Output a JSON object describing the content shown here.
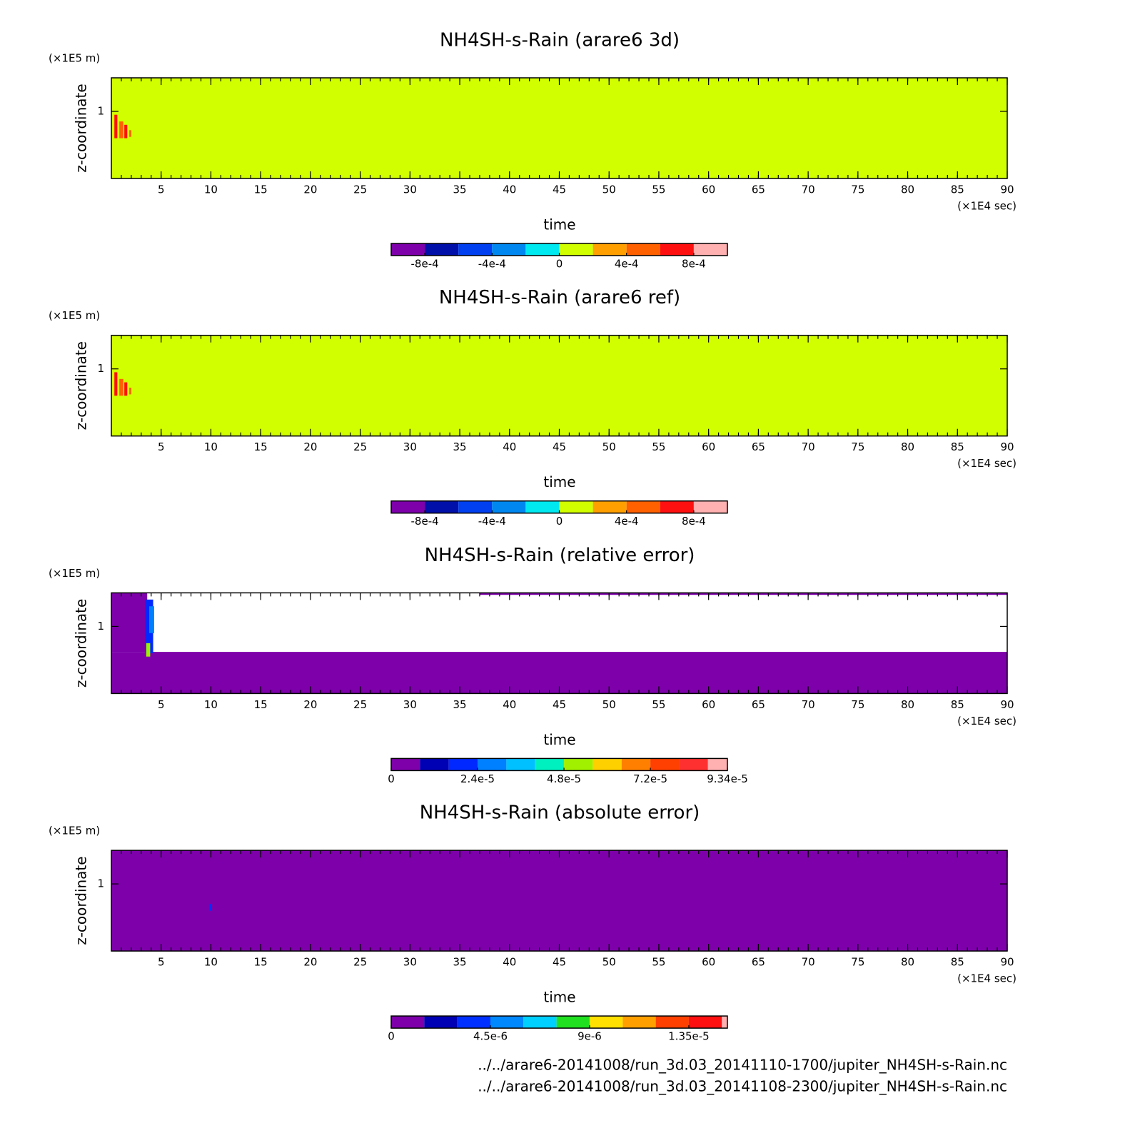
{
  "chart_data": [
    {
      "type": "heatmap",
      "title": "NH4SH-s-Rain (arare6 3d)",
      "x_label": "time",
      "x_unit": "(×1E4 sec)",
      "y_label": "z-coordinate",
      "y_unit": "(×1E5 m)",
      "xlim": [
        0,
        90
      ],
      "xticks": [
        5,
        10,
        15,
        20,
        25,
        30,
        35,
        40,
        45,
        50,
        55,
        60,
        65,
        70,
        75,
        80,
        85,
        90
      ],
      "ylim": [
        0,
        1.5
      ],
      "yticks": [
        1
      ],
      "regions": [
        {
          "x": [
            0,
            90
          ],
          "y": [
            0,
            1.5
          ],
          "value": 0
        },
        {
          "x": [
            0.3,
            0.6
          ],
          "y": [
            0.6,
            0.95
          ],
          "value": 0.0007
        },
        {
          "x": [
            0.8,
            1.2
          ],
          "y": [
            0.6,
            0.85
          ],
          "value": 0.0005
        },
        {
          "x": [
            1.3,
            1.6
          ],
          "y": [
            0.6,
            0.8
          ],
          "value": 0.0007
        },
        {
          "x": [
            1.8,
            2.0
          ],
          "y": [
            0.62,
            0.72
          ],
          "value": 0.0005
        }
      ],
      "colorbar": {
        "bounds": [
          -0.001,
          -0.0008,
          -0.0006,
          -0.0004,
          -0.0002,
          0,
          0.0002,
          0.0004,
          0.0006,
          0.0008,
          0.001
        ],
        "colors": [
          "#7d00aa",
          "#0010a8",
          "#0040f0",
          "#0088f0",
          "#00e8f0",
          "#d2ff00",
          "#ffa000",
          "#ff6000",
          "#ff1010",
          "#ffb0b0"
        ],
        "ticks": [
          {
            "value": -0.0008,
            "label": "-8e-4"
          },
          {
            "value": -0.0004,
            "label": "-4e-4"
          },
          0,
          {
            "value": 0.0004,
            "label": "4e-4"
          },
          {
            "value": 0.0008,
            "label": "8e-4"
          }
        ]
      }
    },
    {
      "type": "heatmap",
      "title": "NH4SH-s-Rain (arare6 ref)",
      "x_label": "time",
      "x_unit": "(×1E4 sec)",
      "y_label": "z-coordinate",
      "y_unit": "(×1E5 m)",
      "xlim": [
        0,
        90
      ],
      "xticks": [
        5,
        10,
        15,
        20,
        25,
        30,
        35,
        40,
        45,
        50,
        55,
        60,
        65,
        70,
        75,
        80,
        85,
        90
      ],
      "ylim": [
        0,
        1.5
      ],
      "yticks": [
        1
      ],
      "regions": [
        {
          "x": [
            0,
            90
          ],
          "y": [
            0,
            1.5
          ],
          "value": 0
        },
        {
          "x": [
            0.3,
            0.6
          ],
          "y": [
            0.6,
            0.95
          ],
          "value": 0.0007
        },
        {
          "x": [
            0.8,
            1.2
          ],
          "y": [
            0.6,
            0.85
          ],
          "value": 0.0005
        },
        {
          "x": [
            1.3,
            1.6
          ],
          "y": [
            0.6,
            0.8
          ],
          "value": 0.0007
        },
        {
          "x": [
            1.8,
            2.0
          ],
          "y": [
            0.62,
            0.72
          ],
          "value": 0.0005
        }
      ],
      "colorbar": {
        "bounds": [
          -0.001,
          -0.0008,
          -0.0006,
          -0.0004,
          -0.0002,
          0,
          0.0002,
          0.0004,
          0.0006,
          0.0008,
          0.001
        ],
        "colors": [
          "#7d00aa",
          "#0010a8",
          "#0040f0",
          "#0088f0",
          "#00e8f0",
          "#d2ff00",
          "#ffa000",
          "#ff6000",
          "#ff1010",
          "#ffb0b0"
        ],
        "ticks": [
          {
            "value": -0.0008,
            "label": "-8e-4"
          },
          {
            "value": -0.0004,
            "label": "-4e-4"
          },
          0,
          {
            "value": 0.0004,
            "label": "4e-4"
          },
          {
            "value": 0.0008,
            "label": "8e-4"
          }
        ]
      }
    },
    {
      "type": "heatmap",
      "title": "NH4SH-s-Rain (relative error)",
      "x_label": "time",
      "x_unit": "(×1E4 sec)",
      "y_label": "z-coordinate",
      "y_unit": "(×1E5 m)",
      "xlim": [
        0,
        90
      ],
      "xticks": [
        5,
        10,
        15,
        20,
        25,
        30,
        35,
        40,
        45,
        50,
        55,
        60,
        65,
        70,
        75,
        80,
        85,
        90
      ],
      "ylim": [
        0,
        1.5
      ],
      "yticks": [
        1
      ],
      "regions": [
        {
          "x": [
            0,
            90
          ],
          "y": [
            0,
            0.62
          ],
          "value": 0
        },
        {
          "x": [
            0,
            3.6
          ],
          "y": [
            0.62,
            1.5
          ],
          "value": 0
        },
        {
          "x": [
            3.4,
            4.2
          ],
          "y": [
            0.6,
            1.4
          ],
          "value": 2e-05
        },
        {
          "x": [
            3.8,
            4.3
          ],
          "y": [
            0.9,
            1.3
          ],
          "value": 3e-05
        },
        {
          "x": [
            3.5,
            3.9
          ],
          "y": [
            0.55,
            0.75
          ],
          "value": 5e-05
        },
        {
          "x": [
            37,
            90
          ],
          "y": [
            1.47,
            1.5
          ],
          "value": 0
        }
      ],
      "colorbar": {
        "bounds": [
          0,
          8e-06,
          1.6e-05,
          2.4e-05,
          3.2e-05,
          4e-05,
          4.8e-05,
          5.6e-05,
          6.4e-05,
          7.2e-05,
          8e-05,
          8.8e-05,
          9.34e-05
        ],
        "colors": [
          "#7d00aa",
          "#0000b4",
          "#0028ff",
          "#0080ff",
          "#00c0ff",
          "#00f0c0",
          "#a0f000",
          "#ffd000",
          "#ff8000",
          "#ff4000",
          "#ff3030",
          "#ffb0b0"
        ],
        "ticks": [
          0,
          {
            "value": 2.4e-05,
            "label": "2.4e-5"
          },
          {
            "value": 4.8e-05,
            "label": "4.8e-5"
          },
          {
            "value": 7.2e-05,
            "label": "7.2e-5"
          },
          {
            "value": 9.34e-05,
            "label": "9.34e-5"
          }
        ]
      }
    },
    {
      "type": "heatmap",
      "title": "NH4SH-s-Rain (absolute error)",
      "x_label": "time",
      "x_unit": "(×1E4 sec)",
      "y_label": "z-coordinate",
      "y_unit": "(×1E5 m)",
      "xlim": [
        0,
        90
      ],
      "xticks": [
        5,
        10,
        15,
        20,
        25,
        30,
        35,
        40,
        45,
        50,
        55,
        60,
        65,
        70,
        75,
        80,
        85,
        90
      ],
      "ylim": [
        0,
        1.5
      ],
      "yticks": [
        1
      ],
      "regions": [
        {
          "x": [
            0,
            90
          ],
          "y": [
            0,
            1.5
          ],
          "value": 0
        },
        {
          "x": [
            9.9,
            10.1
          ],
          "y": [
            0.6,
            0.7
          ],
          "value": 3.5e-06
        }
      ],
      "colorbar": {
        "bounds": [
          0,
          1.5e-06,
          3e-06,
          4.5e-06,
          6e-06,
          7.5e-06,
          9e-06,
          1.05e-05,
          1.2e-05,
          1.35e-05,
          1.5e-05,
          1.525e-05
        ],
        "colors": [
          "#7d00aa",
          "#0000b4",
          "#0030ff",
          "#0088ff",
          "#00d0ff",
          "#20e020",
          "#ffe000",
          "#ffa000",
          "#ff4000",
          "#ff1010",
          "#ffb0b0"
        ],
        "ticks": [
          0,
          {
            "value": 4.5e-06,
            "label": "4.5e-6"
          },
          {
            "value": 9e-06,
            "label": "9e-6"
          },
          {
            "value": 1.35e-05,
            "label": "1.35e-5"
          }
        ]
      }
    }
  ],
  "footer": {
    "lines": [
      "../../arare6-20141008/run_3d.03_20141110-1700/jupiter_NH4SH-s-Rain.nc",
      "../../arare6-20141008/run_3d.03_20141108-2300/jupiter_NH4SH-s-Rain.nc"
    ]
  }
}
